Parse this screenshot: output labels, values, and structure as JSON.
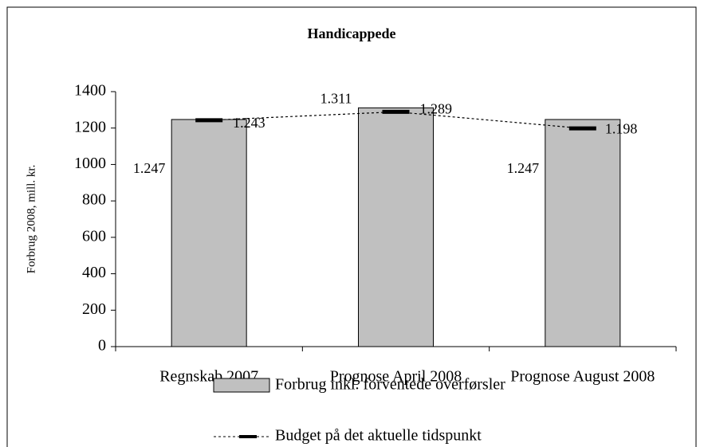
{
  "chart_data": {
    "type": "bar",
    "title": "Handicappede",
    "y_label": "Forbrug 2008, mill. kr.",
    "categories": [
      "Regnskab 2007",
      "Prognose April 2008",
      "Prognose August 2008"
    ],
    "series": [
      {
        "name": "Forbrug inkl. forventede overførsler",
        "type": "bar",
        "color": "#c0c0c0",
        "values": [
          1247,
          1311,
          1247
        ],
        "value_labels": [
          "1.247",
          "1.311",
          "1.247"
        ]
      },
      {
        "name": "Budget på det aktuelle tidspunkt",
        "type": "line",
        "color": "#000000",
        "values": [
          1243,
          1289,
          1198
        ],
        "value_labels": [
          "1.243",
          "1.289",
          "1.198"
        ]
      }
    ],
    "ylim": [
      0,
      1400
    ],
    "yticks": [
      0,
      200,
      400,
      600,
      800,
      1000,
      1200,
      1400
    ],
    "legend": "bottom"
  }
}
